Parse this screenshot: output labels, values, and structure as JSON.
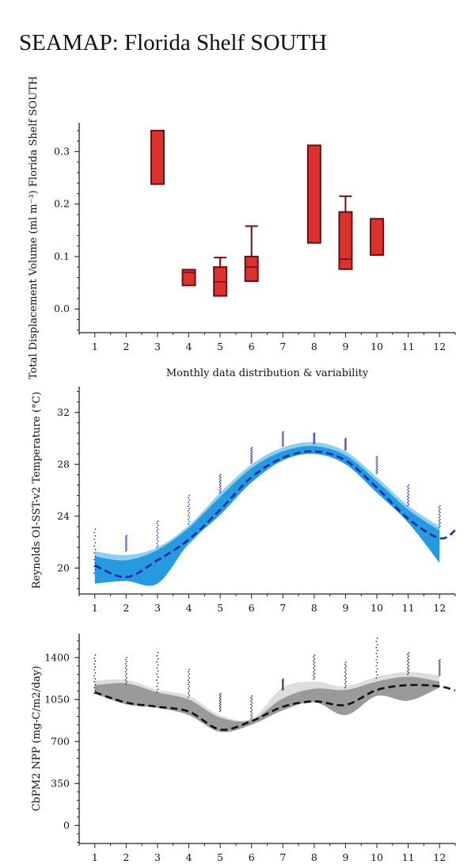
{
  "page": {
    "title": "SEAMAP: Florida Shelf SOUTH"
  },
  "chart_data": [
    {
      "type": "box",
      "ylabel": "Total Displacement Volume (ml m⁻³) Florida Shelf SOUTH",
      "xlabel": "Monthly data distribution & variability",
      "xticks": [
        1,
        2,
        3,
        4,
        5,
        6,
        7,
        8,
        9,
        10,
        11,
        12
      ],
      "yticks": [
        0.0,
        0.1,
        0.2,
        0.3
      ],
      "xlim": [
        0.5,
        12.5
      ],
      "ylim": [
        -0.045,
        0.355
      ],
      "colors": {
        "box": "#d9322f",
        "edge": "#6b1010"
      },
      "boxes": [
        {
          "month": 3,
          "q1": 0.238,
          "median": 0.238,
          "q3": 0.34,
          "whisker_low": 0.238,
          "whisker_high": 0.34
        },
        {
          "month": 4,
          "q1": 0.045,
          "median": 0.07,
          "q3": 0.075,
          "whisker_low": 0.045,
          "whisker_high": 0.075
        },
        {
          "month": 5,
          "q1": 0.025,
          "median": 0.052,
          "q3": 0.08,
          "whisker_low": 0.025,
          "whisker_high": 0.098
        },
        {
          "month": 6,
          "q1": 0.053,
          "median": 0.08,
          "q3": 0.1,
          "whisker_low": 0.053,
          "whisker_high": 0.158
        },
        {
          "month": 8,
          "q1": 0.126,
          "median": 0.126,
          "q3": 0.312,
          "whisker_low": 0.126,
          "whisker_high": 0.312
        },
        {
          "month": 9,
          "q1": 0.076,
          "median": 0.095,
          "q3": 0.185,
          "whisker_low": 0.076,
          "whisker_high": 0.215
        },
        {
          "month": 10,
          "q1": 0.103,
          "median": 0.103,
          "q3": 0.172,
          "whisker_low": 0.103,
          "whisker_high": 0.172
        }
      ]
    },
    {
      "type": "line",
      "ylabel": "Reynolds OI-SST-v2 Temperature (°C)",
      "xticks": [
        1,
        2,
        3,
        4,
        5,
        6,
        7,
        8,
        9,
        10,
        11,
        12
      ],
      "yticks": [
        20,
        24,
        28,
        32
      ],
      "xlim": [
        0.5,
        12.5
      ],
      "ylim": [
        18.0,
        34.0
      ],
      "colors": {
        "light_band": "#8fd0f2",
        "dark_band": "#2699e0",
        "mean": "#1b2aa0",
        "points": "#2a35c8"
      },
      "mean": {
        "x": [
          1,
          2,
          3,
          4,
          5,
          6,
          7,
          8,
          9,
          10,
          11,
          12,
          12.5
        ],
        "y": [
          20.2,
          19.3,
          20.6,
          22.2,
          24.5,
          27.0,
          28.5,
          29.0,
          28.3,
          26.2,
          23.8,
          22.3,
          22.9
        ]
      },
      "light_band": {
        "x": [
          1,
          2,
          3,
          4,
          5,
          6,
          7,
          8,
          9,
          10,
          11,
          12
        ],
        "upper": [
          21.3,
          21.0,
          21.6,
          23.3,
          25.8,
          28.0,
          29.3,
          29.7,
          29.0,
          27.0,
          24.8,
          23.2
        ],
        "lower": [
          19.5,
          19.3,
          20.0,
          21.8,
          24.5,
          27.0,
          28.5,
          29.0,
          28.3,
          26.3,
          23.8,
          22.3
        ]
      },
      "dark_band": {
        "x": [
          1,
          2,
          3,
          4,
          5,
          6,
          7,
          8,
          9,
          10,
          11,
          12
        ],
        "upper": [
          20.9,
          20.6,
          21.4,
          23.1,
          25.5,
          27.7,
          29.0,
          29.4,
          28.7,
          26.7,
          24.5,
          22.9
        ],
        "lower": [
          18.8,
          19.0,
          18.8,
          21.9,
          24.1,
          26.6,
          28.3,
          28.8,
          28.0,
          25.8,
          23.5,
          20.4
        ]
      },
      "point_ranges": [
        {
          "month": 1,
          "low": 19.6,
          "high": 23.0
        },
        {
          "month": 2,
          "low": 21.3,
          "high": 22.5
        },
        {
          "month": 3,
          "low": 21.6,
          "high": 23.6
        },
        {
          "month": 4,
          "low": 23.4,
          "high": 25.6
        },
        {
          "month": 5,
          "low": 25.8,
          "high": 27.2
        },
        {
          "month": 6,
          "low": 28.1,
          "high": 29.3
        },
        {
          "month": 7,
          "low": 29.4,
          "high": 30.5
        },
        {
          "month": 8,
          "low": 29.6,
          "high": 30.4
        },
        {
          "month": 9,
          "low": 29.1,
          "high": 30.0
        },
        {
          "month": 10,
          "low": 27.3,
          "high": 28.6
        },
        {
          "month": 11,
          "low": 24.8,
          "high": 26.4
        },
        {
          "month": 12,
          "low": 23.1,
          "high": 24.8
        }
      ]
    },
    {
      "type": "line",
      "ylabel": "CbPM2 NPP (mg-C/m2/day)",
      "xticks": [
        1,
        2,
        3,
        4,
        5,
        6,
        7,
        8,
        9,
        10,
        11,
        12
      ],
      "yticks": [
        0,
        350,
        700,
        1050,
        1400
      ],
      "xlim": [
        0.5,
        12.5
      ],
      "ylim": [
        -150,
        1600
      ],
      "colors": {
        "light_band": "#dddddd",
        "dark_band": "#9a9a9a",
        "mean": "#111111",
        "points": "#333333"
      },
      "mean": {
        "x": [
          1,
          2,
          3,
          4,
          5,
          6,
          7,
          8,
          9,
          10,
          11,
          12,
          12.5
        ],
        "y": [
          1110,
          1025,
          990,
          950,
          800,
          870,
          990,
          1035,
          1005,
          1130,
          1170,
          1160,
          1125
        ]
      },
      "light_band": {
        "x": [
          1,
          2,
          3,
          4,
          5,
          6,
          7,
          8,
          9,
          10,
          11,
          12
        ],
        "upper": [
          1205,
          1215,
          1130,
          1080,
          920,
          890,
          1150,
          1200,
          1160,
          1240,
          1280,
          1250
        ],
        "lower": [
          1100,
          1020,
          980,
          930,
          820,
          850,
          980,
          1020,
          990,
          1110,
          1150,
          1150
        ]
      },
      "dark_band": {
        "x": [
          1,
          2,
          3,
          4,
          5,
          6,
          7,
          8,
          9,
          10,
          11,
          12
        ],
        "upper": [
          1170,
          1185,
          1110,
          1050,
          900,
          880,
          1060,
          1140,
          1130,
          1200,
          1240,
          1200
        ],
        "lower": [
          1100,
          1010,
          980,
          920,
          780,
          840,
          960,
          1030,
          920,
          1080,
          1040,
          1150
        ]
      },
      "point_ranges": [
        {
          "month": 1,
          "low": 1100,
          "high": 1420
        },
        {
          "month": 2,
          "low": 1180,
          "high": 1400
        },
        {
          "month": 3,
          "low": 1110,
          "high": 1440
        },
        {
          "month": 4,
          "low": 1070,
          "high": 1300
        },
        {
          "month": 5,
          "low": 950,
          "high": 1100
        },
        {
          "month": 6,
          "low": 890,
          "high": 1080
        },
        {
          "month": 7,
          "low": 1130,
          "high": 1220
        },
        {
          "month": 8,
          "low": 1220,
          "high": 1420
        },
        {
          "month": 9,
          "low": 1150,
          "high": 1360
        },
        {
          "month": 10,
          "low": 1230,
          "high": 1560
        },
        {
          "month": 11,
          "low": 1260,
          "high": 1440
        },
        {
          "month": 12,
          "low": 1250,
          "high": 1380
        }
      ]
    }
  ]
}
